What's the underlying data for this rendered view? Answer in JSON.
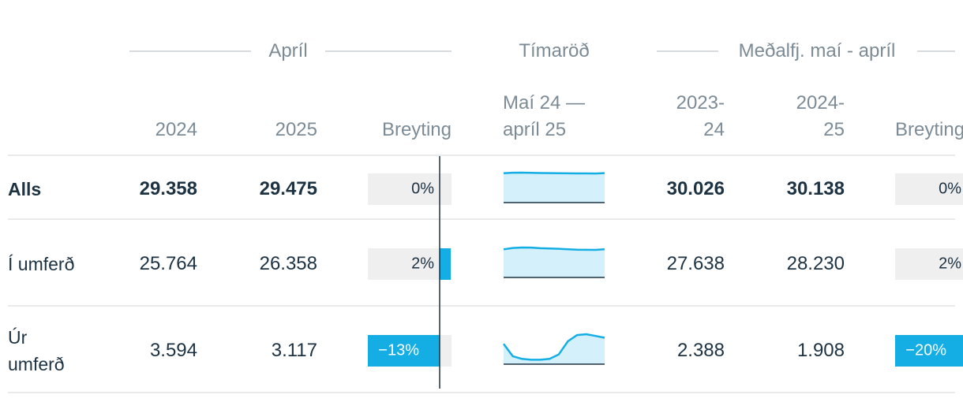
{
  "header": {
    "groups": [
      "Apríl",
      "Tímaröð",
      "Meðalfj. maí - apríl"
    ],
    "columns": [
      [
        "2024"
      ],
      [
        "2025"
      ],
      [
        "Breyting"
      ],
      [
        "Maí 24 —",
        "apríl 25"
      ],
      [
        "2023-",
        "24"
      ],
      [
        "2024-",
        "25"
      ],
      [
        "Breyting"
      ]
    ]
  },
  "color": "#14aee5",
  "rows": [
    {
      "label": "Alls",
      "apr_2024": "29.358",
      "apr_2025": "29.475",
      "apr_change": {
        "value": 0,
        "label": "0%"
      },
      "trend": [
        29.8,
        30.3,
        30.4,
        30.2,
        30.0,
        29.9,
        29.8,
        29.7,
        29.6,
        29.6,
        29.5,
        29.9
      ],
      "avg_2023_24": "30.026",
      "avg_2024_25": "30.138",
      "avg_change": {
        "value": 0,
        "label": "0%"
      }
    },
    {
      "label": "Í umferð",
      "apr_2024": "25.764",
      "apr_2025": "26.358",
      "apr_change": {
        "value": 2,
        "label": "2%"
      },
      "trend": [
        27.5,
        28.8,
        29.3,
        29.2,
        28.6,
        28.4,
        28.1,
        27.6,
        27.2,
        27.1,
        27.0,
        27.6
      ],
      "avg_2023_24": "27.638",
      "avg_2024_25": "28.230",
      "avg_change": {
        "value": 2,
        "label": "2%"
      }
    },
    {
      "label": "Úr umferð",
      "apr_2024": "3.594",
      "apr_2025": "3.117",
      "apr_change": {
        "value": -13,
        "label": "−13%"
      },
      "trend": [
        2.3,
        0.9,
        0.6,
        0.5,
        0.5,
        0.6,
        1.1,
        2.6,
        3.3,
        3.4,
        3.2,
        3.0
      ],
      "avg_2023_24": "2.388",
      "avg_2024_25": "1.908",
      "avg_change": {
        "value": -20,
        "label": "−20%"
      }
    }
  ]
}
